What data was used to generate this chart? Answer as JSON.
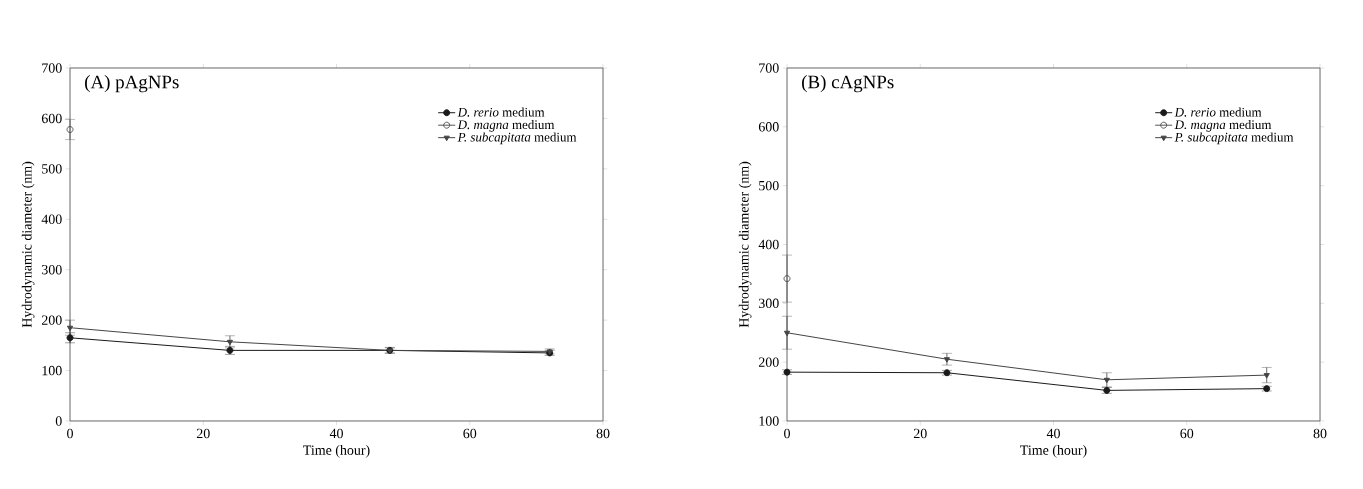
{
  "chart_data": [
    {
      "type": "line",
      "title": "(A) pAgNPs",
      "xlabel": "Time (hour)",
      "ylabel": "Hydrodynamic diameter (nm)",
      "x": [
        0,
        24,
        48,
        72
      ],
      "xlim": [
        0,
        80
      ],
      "xticks": [
        0,
        20,
        40,
        60,
        80
      ],
      "ylim": [
        0,
        700
      ],
      "yticks": [
        0,
        100,
        200,
        300,
        400,
        500,
        600,
        700
      ],
      "legend": "top right",
      "series": [
        {
          "name": "*D. rerio* medium",
          "color": "#1a1a1a",
          "marker": "circle",
          "values": [
            165,
            140,
            140,
            135
          ],
          "errors": [
            10,
            8,
            5,
            5
          ]
        },
        {
          "name": "*D. magna* medium",
          "color": "#555555",
          "marker": "open circle",
          "values": [
            578,
            null,
            null,
            null
          ],
          "errors": [
            20,
            null,
            null,
            null
          ]
        },
        {
          "name": "*P. subcapitata* medium",
          "color": "#444444",
          "marker": "triangle",
          "values": [
            185,
            157,
            140,
            138
          ],
          "errors": [
            15,
            12,
            6,
            5
          ]
        }
      ]
    },
    {
      "type": "line",
      "title": "(B) cAgNPs",
      "xlabel": "Time (hour)",
      "ylabel": "Hydrodynamic diameter (nm)",
      "x": [
        0,
        24,
        48,
        72
      ],
      "xlim": [
        0,
        80
      ],
      "xticks": [
        0,
        20,
        40,
        60,
        80
      ],
      "ylim": [
        100,
        700
      ],
      "yticks": [
        100,
        200,
        300,
        400,
        500,
        600,
        700
      ],
      "legend": "top right",
      "series": [
        {
          "name": "*D. rerio* medium",
          "color": "#1a1a1a",
          "marker": "circle",
          "values": [
            183,
            182,
            152,
            155
          ],
          "errors": [
            4,
            4,
            5,
            4
          ]
        },
        {
          "name": "*D. magna* medium",
          "color": "#555555",
          "marker": "open circle",
          "values": [
            342,
            null,
            null,
            null
          ],
          "errors": [
            40,
            null,
            null,
            null
          ]
        },
        {
          "name": "*P. subcapitata* medium",
          "color": "#444444",
          "marker": "triangle",
          "values": [
            250,
            205,
            170,
            178
          ],
          "errors": [
            28,
            10,
            12,
            13
          ]
        }
      ]
    }
  ]
}
